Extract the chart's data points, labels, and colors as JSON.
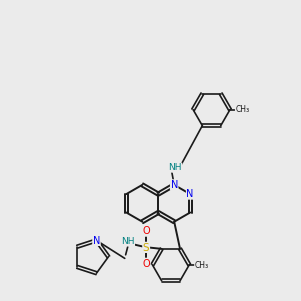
{
  "bg_color": "#ebebeb",
  "bond_color": "#1a1a1a",
  "N_color": "#0000ee",
  "NH_color": "#008080",
  "S_color": "#ccaa00",
  "O_color": "#ee0000",
  "lw_ring": 1.4,
  "lw_sub": 1.2,
  "ring_r": 0.62,
  "pyr_r": 0.58
}
